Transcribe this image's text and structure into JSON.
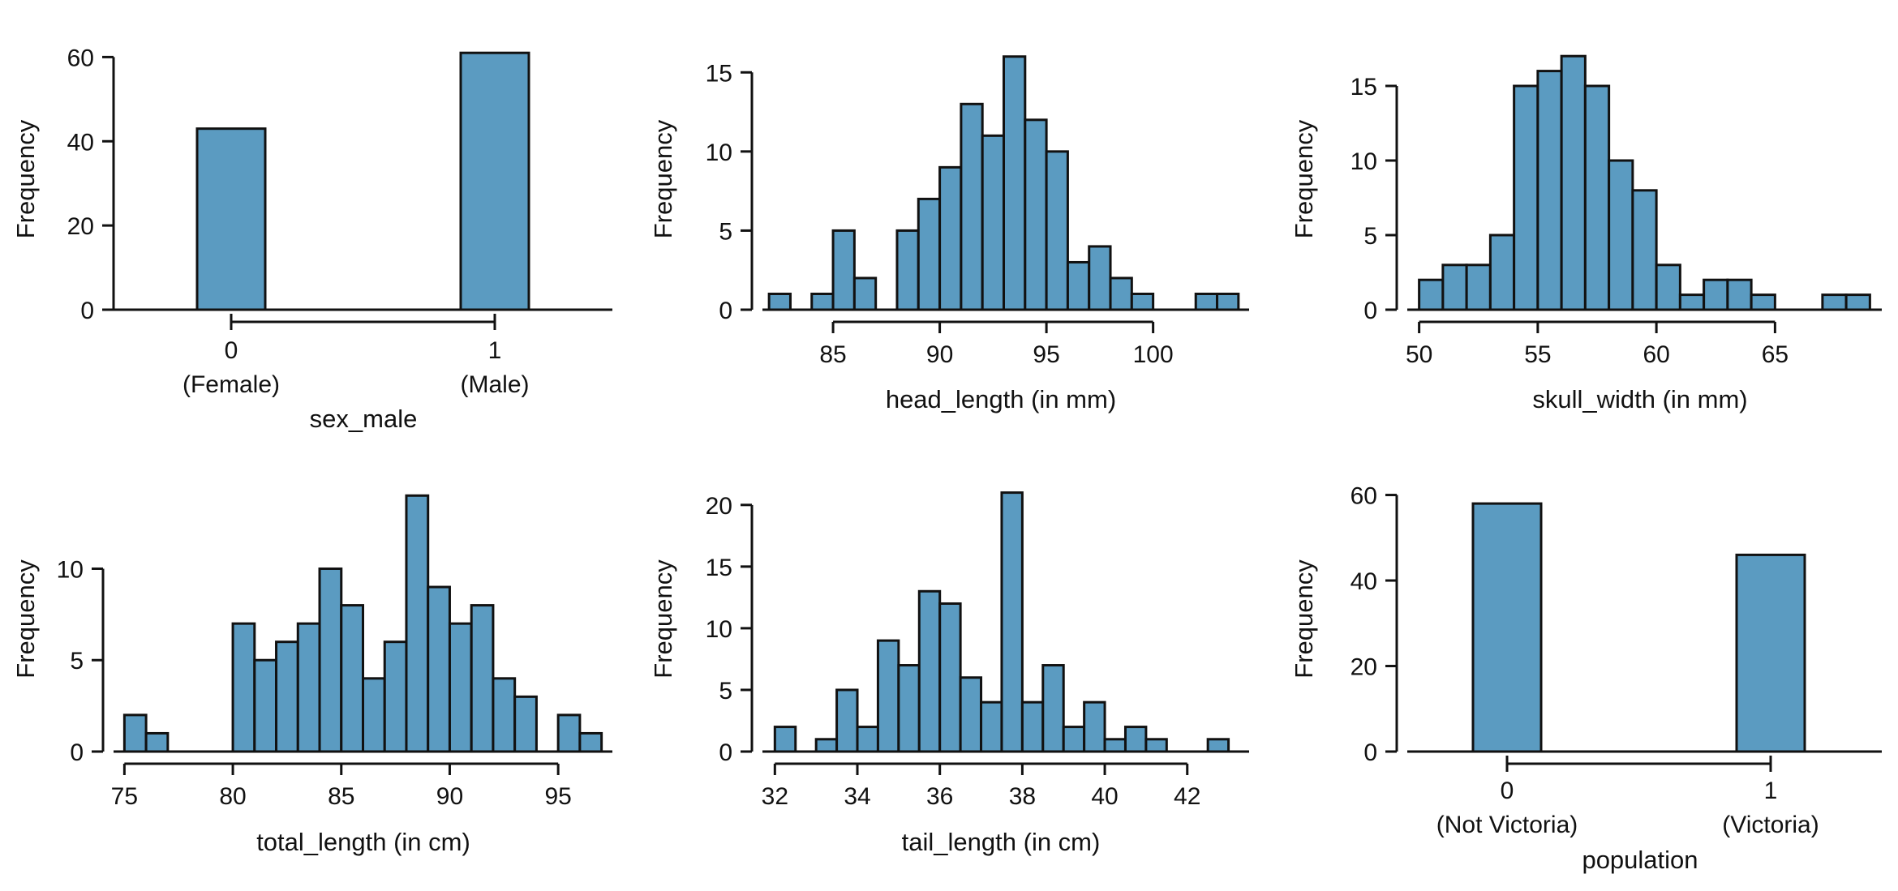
{
  "colors": {
    "bar_fill": "#5B9BC1",
    "bar_stroke": "#111111",
    "axis": "#111111"
  },
  "chart_data": [
    {
      "type": "bar",
      "xlabel": "sex_male",
      "ylabel": "Frequency",
      "categories": [
        "0",
        "1"
      ],
      "category_sublabels": [
        "(Female)",
        "(Male)"
      ],
      "values": [
        43,
        61
      ],
      "yticks": [
        0,
        20,
        40,
        60
      ],
      "ylim": [
        0,
        62
      ]
    },
    {
      "type": "bar",
      "xlabel": "head_length (in mm)",
      "ylabel": "Frequency",
      "bin_start": 82,
      "bin_width": 1,
      "values": [
        1,
        0,
        1,
        5,
        2,
        0,
        5,
        7,
        9,
        13,
        11,
        16,
        12,
        10,
        3,
        4,
        2,
        1,
        0,
        0,
        1,
        1
      ],
      "xticks": [
        85,
        90,
        95,
        100
      ],
      "xlim": [
        81.5,
        104.5
      ],
      "yticks": [
        0,
        5,
        10,
        15
      ],
      "ylim": [
        0,
        16.5
      ]
    },
    {
      "type": "bar",
      "xlabel": "skull_width (in mm)",
      "ylabel": "Frequency",
      "bin_start": 50,
      "bin_width": 1,
      "values": [
        2,
        3,
        3,
        5,
        15,
        16,
        17,
        15,
        10,
        8,
        3,
        1,
        2,
        2,
        1,
        0,
        0,
        1,
        1
      ],
      "xticks": [
        50,
        55,
        60,
        65
      ],
      "xlim": [
        49.5,
        69.5
      ],
      "yticks": [
        0,
        5,
        10,
        15
      ],
      "ylim": [
        0,
        17.5
      ]
    },
    {
      "type": "bar",
      "xlabel": "total_length (in cm)",
      "ylabel": "Frequency",
      "bin_start": 75,
      "bin_width": 1,
      "values": [
        2,
        1,
        0,
        0,
        0,
        7,
        5,
        6,
        7,
        10,
        8,
        4,
        6,
        14,
        9,
        7,
        8,
        4,
        3,
        0,
        2,
        1
      ],
      "xticks": [
        75,
        80,
        85,
        90,
        95
      ],
      "xlim": [
        74.5,
        97.5
      ],
      "yticks": [
        0,
        5,
        10
      ],
      "ylim": [
        0,
        14.5
      ]
    },
    {
      "type": "bar",
      "xlabel": "tail_length (in cm)",
      "ylabel": "Frequency",
      "bin_start": 32,
      "bin_width": 0.5,
      "values": [
        2,
        0,
        1,
        5,
        2,
        9,
        7,
        13,
        12,
        6,
        4,
        21,
        4,
        7,
        2,
        4,
        1,
        2,
        1,
        0,
        0,
        1
      ],
      "xticks": [
        32,
        34,
        36,
        38,
        40,
        42
      ],
      "xlim": [
        31.6,
        43.5
      ],
      "yticks": [
        0,
        5,
        10,
        15,
        20
      ],
      "ylim": [
        0,
        21.5
      ]
    },
    {
      "type": "bar",
      "xlabel": "population",
      "ylabel": "Frequency",
      "categories": [
        "0",
        "1"
      ],
      "category_sublabels": [
        "(Not Victoria)",
        "(Victoria)"
      ],
      "values": [
        58,
        46
      ],
      "yticks": [
        0,
        20,
        40,
        60
      ],
      "ylim": [
        0,
        62
      ]
    }
  ]
}
